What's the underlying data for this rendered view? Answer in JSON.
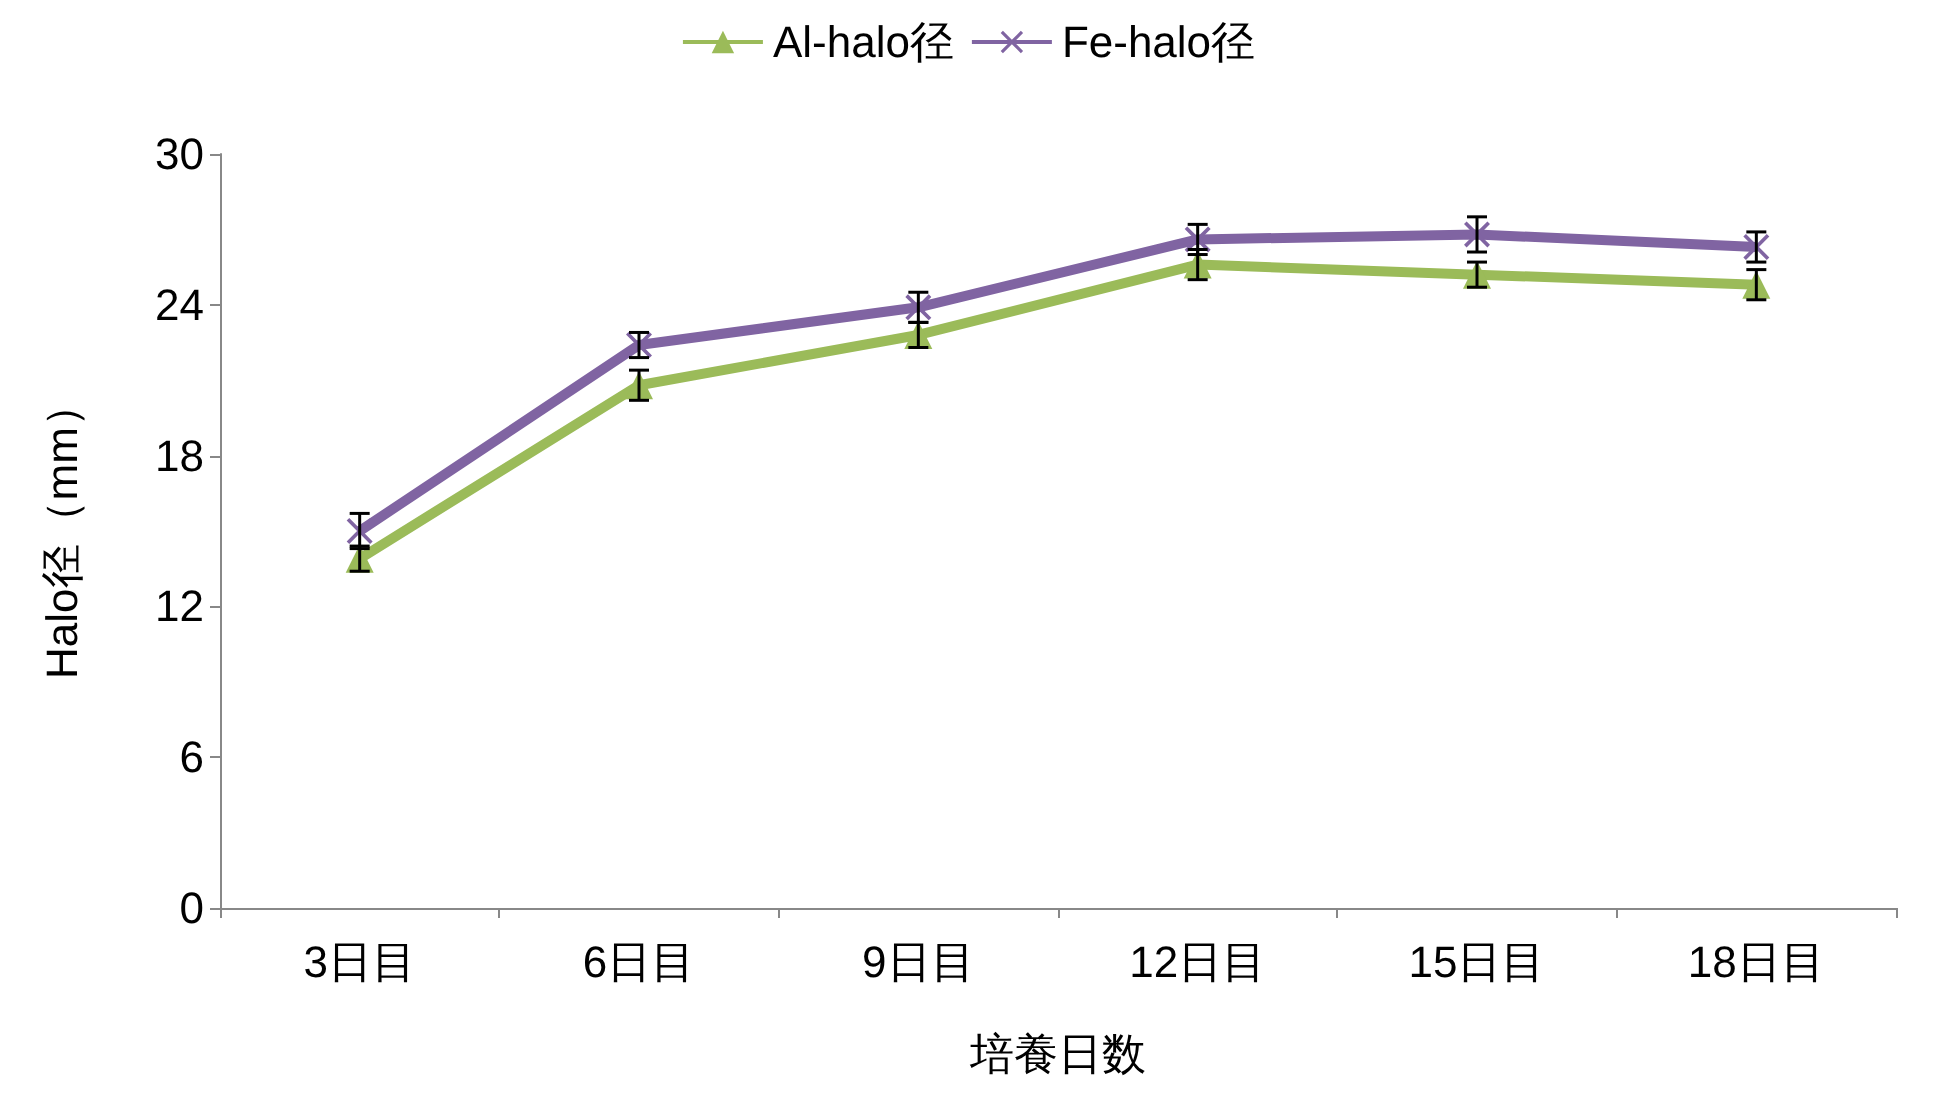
{
  "chart_data": {
    "type": "line",
    "xlabel": "培養日数",
    "ylabel": "Halo径（mm）",
    "categories": [
      "3日目",
      "6日目",
      "9日目",
      "12日目",
      "15日目",
      "18日目"
    ],
    "ylim": [
      0,
      30
    ],
    "yticks": [
      0,
      6,
      12,
      18,
      24,
      30
    ],
    "grid": false,
    "legend": "top",
    "series": [
      {
        "name": "Al-halo径",
        "color": "#9bbb59",
        "marker": "triangle",
        "values": [
          13.9,
          20.8,
          22.8,
          25.6,
          25.2,
          24.8
        ],
        "errors": [
          0.5,
          0.6,
          0.5,
          0.6,
          0.5,
          0.6
        ]
      },
      {
        "name": "Fe-halo径",
        "color": "#8064a2",
        "marker": "cross",
        "values": [
          15.0,
          22.4,
          23.9,
          26.6,
          26.8,
          26.3
        ],
        "errors": [
          0.7,
          0.5,
          0.6,
          0.6,
          0.7,
          0.6
        ]
      }
    ]
  }
}
